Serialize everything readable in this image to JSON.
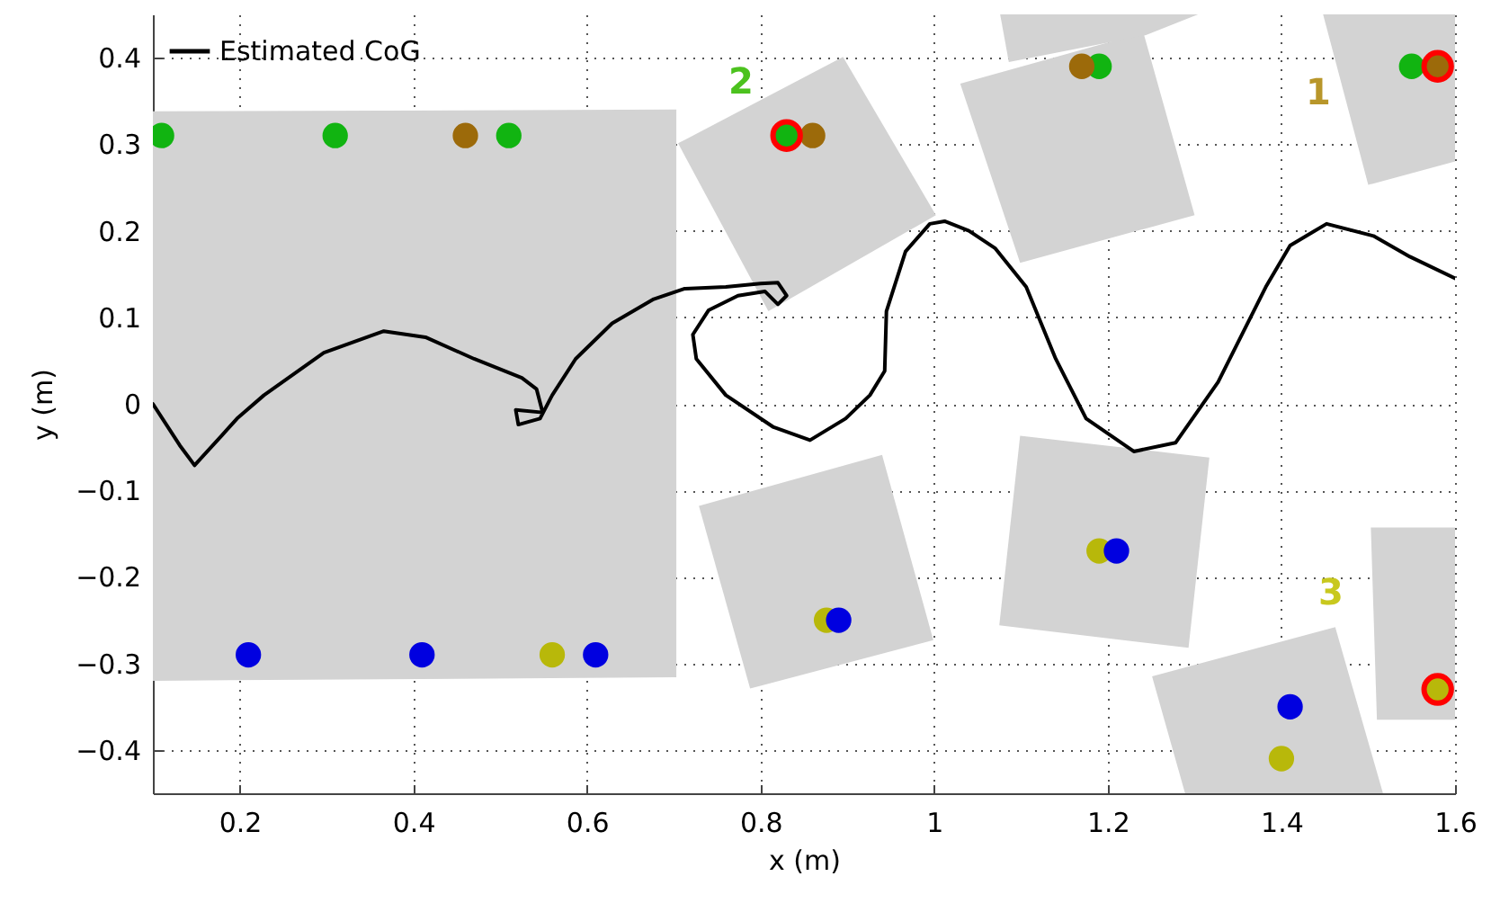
{
  "chart_data": {
    "type": "line",
    "xlabel": "x (m)",
    "ylabel": "y (m)",
    "xlim": [
      0.1,
      1.6
    ],
    "ylim": [
      -0.45,
      0.45
    ],
    "xticks": [
      0.2,
      0.4,
      0.6,
      0.8,
      1,
      1.2,
      1.4,
      1.6
    ],
    "yticks": [
      -0.4,
      -0.3,
      -0.2,
      -0.1,
      0,
      0.1,
      0.2,
      0.3,
      0.4
    ],
    "grid": true,
    "legend": "top left",
    "annotations": [
      "1",
      "2",
      "3"
    ],
    "series": [
      {
        "name": "Estimated CoG",
        "color": "#000000",
        "x": [
          0.1,
          0.131,
          0.148,
          0.179,
          0.197,
          0.228,
          0.297,
          0.366,
          0.414,
          0.47,
          0.525,
          0.542,
          0.549,
          0.518,
          0.521,
          0.546,
          0.56,
          0.587,
          0.629,
          0.677,
          0.712,
          0.76,
          0.8,
          0.82,
          0.83,
          0.82,
          0.805,
          0.774,
          0.74,
          0.722,
          0.726,
          0.76,
          0.815,
          0.857,
          0.898,
          0.926,
          0.943,
          0.945,
          0.967,
          0.995,
          1.012,
          1.04,
          1.07,
          1.106,
          1.14,
          1.175,
          1.23,
          1.278,
          1.327,
          1.382,
          1.41,
          1.452,
          1.506,
          1.548,
          1.6
        ],
        "values": [
          0.0,
          -0.048,
          -0.071,
          -0.037,
          -0.017,
          0.01,
          0.059,
          0.084,
          0.077,
          0.052,
          0.03,
          0.017,
          -0.01,
          -0.007,
          -0.024,
          -0.017,
          0.01,
          0.052,
          0.093,
          0.121,
          0.133,
          0.135,
          0.139,
          0.14,
          0.125,
          0.115,
          0.13,
          0.125,
          0.108,
          0.08,
          0.052,
          0.01,
          -0.027,
          -0.042,
          -0.017,
          0.01,
          0.038,
          0.107,
          0.176,
          0.208,
          0.211,
          0.2,
          0.18,
          0.135,
          0.052,
          -0.017,
          -0.055,
          -0.045,
          0.025,
          0.135,
          0.183,
          0.208,
          0.194,
          0.17,
          0.145
        ]
      },
      {
        "type": "scatter",
        "color": "#11b411",
        "x": [
          0.11,
          0.31,
          0.51,
          0.83,
          1.19,
          1.55
        ],
        "values": [
          0.31,
          0.31,
          0.31,
          0.31,
          0.39,
          0.39
        ]
      },
      {
        "type": "scatter",
        "color": "#9c6a0a",
        "x": [
          0.46,
          0.86,
          1.17,
          1.58
        ],
        "values": [
          0.31,
          0.31,
          0.39,
          0.39
        ]
      },
      {
        "type": "scatter",
        "color": "#b8b80a",
        "x": [
          0.56,
          0.876,
          1.19,
          1.4,
          1.58
        ],
        "values": [
          -0.29,
          -0.25,
          -0.17,
          -0.41,
          -0.33
        ]
      },
      {
        "type": "scatter",
        "color": "#0000e0",
        "x": [
          0.21,
          0.41,
          0.61,
          0.89,
          1.21,
          1.41
        ],
        "values": [
          -0.29,
          -0.29,
          -0.29,
          -0.25,
          -0.17,
          -0.35
        ]
      },
      {
        "type": "scatter",
        "color": "#ff0000",
        "marker": "circle",
        "x": [
          0.83,
          1.58,
          1.58
        ],
        "values": [
          0.31,
          0.39,
          -0.33
        ]
      }
    ]
  }
}
